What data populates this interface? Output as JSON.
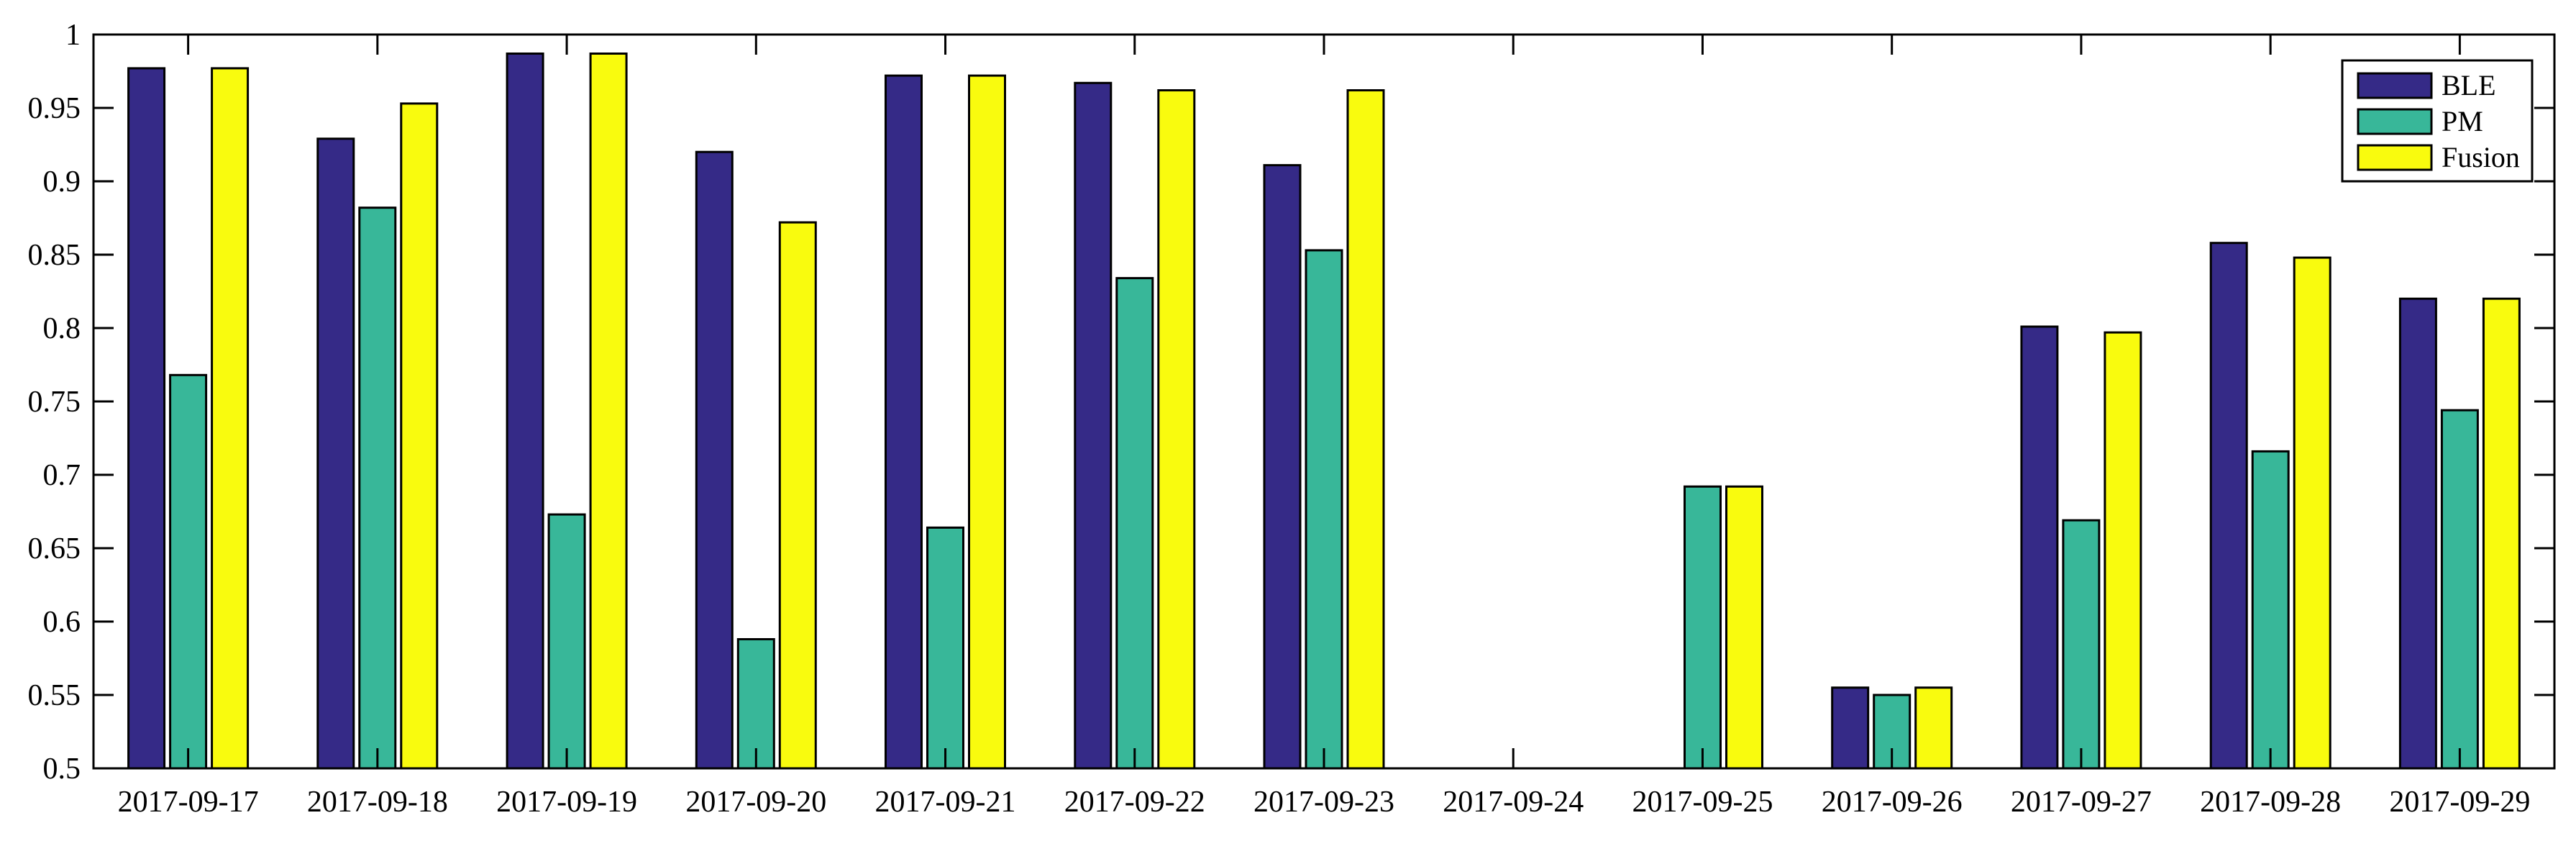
{
  "chart_data": {
    "type": "bar",
    "title": "",
    "xlabel": "",
    "ylabel": "",
    "categories": [
      "2017-09-17",
      "2017-09-18",
      "2017-09-19",
      "2017-09-20",
      "2017-09-21",
      "2017-09-22",
      "2017-09-23",
      "2017-09-24",
      "2017-09-25",
      "2017-09-26",
      "2017-09-27",
      "2017-09-28",
      "2017-09-29"
    ],
    "series": [
      {
        "name": "BLE",
        "color": "#352a87",
        "values": [
          0.977,
          0.929,
          0.987,
          0.92,
          0.972,
          0.967,
          0.911,
          null,
          null,
          0.555,
          0.801,
          0.858,
          0.82
        ]
      },
      {
        "name": "PM",
        "color": "#38b799",
        "values": [
          0.768,
          0.882,
          0.673,
          0.588,
          0.664,
          0.834,
          0.853,
          null,
          0.692,
          0.55,
          0.669,
          0.716,
          0.744
        ]
      },
      {
        "name": "Fusion",
        "color": "#f9fb0e",
        "values": [
          0.977,
          0.953,
          0.987,
          0.872,
          0.972,
          0.962,
          0.962,
          null,
          0.692,
          0.555,
          0.797,
          0.848,
          0.82
        ]
      }
    ],
    "ylim": [
      0.5,
      1
    ],
    "yticks": [
      0.5,
      0.55,
      0.6,
      0.65,
      0.7,
      0.75,
      0.8,
      0.85,
      0.9,
      0.95,
      1
    ],
    "ytick_labels": [
      "0.5",
      "0.55",
      "0.6",
      "0.65",
      "0.7",
      "0.75",
      "0.8",
      "0.85",
      "0.9",
      "0.95",
      "1"
    ],
    "grid": false,
    "legend": "top-right"
  }
}
